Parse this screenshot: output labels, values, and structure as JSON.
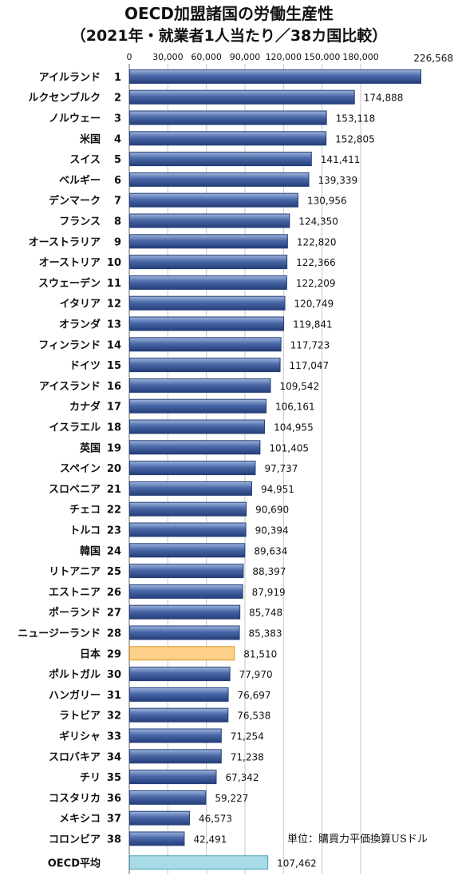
{
  "title_line1": "OECD加盟諸国の労働生産性",
  "title_line2": "（2021年・就業者1人当たり／38カ国比較）",
  "unit_note": "単位：購買力平価換算USドル",
  "colors": {
    "bar": "#4a68a8",
    "bar_light": "#9fb6dc",
    "bar_dark": "#243e78",
    "japan": "#fcd088",
    "japan_border": "#e0962a",
    "oecd_avg": "#a8dbe6",
    "oecd_avg_border": "#4aa0b8",
    "grid": "#c8c8c8"
  },
  "chart_data": {
    "type": "bar",
    "orientation": "horizontal",
    "title": "OECD加盟諸国の労働生産性（2021年・就業者1人当たり／38カ国比較）",
    "xlim": [
      0,
      226568
    ],
    "x_ticks": [
      "0",
      "30,000",
      "60,000",
      "90,000",
      "120,000",
      "150,000",
      "180,000"
    ],
    "x_tick_values": [
      0,
      30000,
      60000,
      90000,
      120000,
      150000,
      180000
    ],
    "grid": true,
    "rows": [
      {
        "country": "アイルランド",
        "rank": "1",
        "value": 226568,
        "value_label": "226,568"
      },
      {
        "country": "ルクセンブルク",
        "rank": "2",
        "value": 174888,
        "value_label": "174,888"
      },
      {
        "country": "ノルウェー",
        "rank": "3",
        "value": 153118,
        "value_label": "153,118"
      },
      {
        "country": "米国",
        "rank": "4",
        "value": 152805,
        "value_label": "152,805"
      },
      {
        "country": "スイス",
        "rank": "5",
        "value": 141411,
        "value_label": "141,411"
      },
      {
        "country": "ベルギー",
        "rank": "6",
        "value": 139339,
        "value_label": "139,339"
      },
      {
        "country": "デンマーク",
        "rank": "7",
        "value": 130956,
        "value_label": "130,956"
      },
      {
        "country": "フランス",
        "rank": "8",
        "value": 124350,
        "value_label": "124,350"
      },
      {
        "country": "オーストラリア",
        "rank": "9",
        "value": 122820,
        "value_label": "122,820"
      },
      {
        "country": "オーストリア",
        "rank": "10",
        "value": 122366,
        "value_label": "122,366"
      },
      {
        "country": "スウェーデン",
        "rank": "11",
        "value": 122209,
        "value_label": "122,209"
      },
      {
        "country": "イタリア",
        "rank": "12",
        "value": 120749,
        "value_label": "120,749"
      },
      {
        "country": "オランダ",
        "rank": "13",
        "value": 119841,
        "value_label": "119,841"
      },
      {
        "country": "フィンランド",
        "rank": "14",
        "value": 117723,
        "value_label": "117,723"
      },
      {
        "country": "ドイツ",
        "rank": "15",
        "value": 117047,
        "value_label": "117,047"
      },
      {
        "country": "アイスランド",
        "rank": "16",
        "value": 109542,
        "value_label": "109,542"
      },
      {
        "country": "カナダ",
        "rank": "17",
        "value": 106161,
        "value_label": "106,161"
      },
      {
        "country": "イスラエル",
        "rank": "18",
        "value": 104955,
        "value_label": "104,955"
      },
      {
        "country": "英国",
        "rank": "19",
        "value": 101405,
        "value_label": "101,405"
      },
      {
        "country": "スペイン",
        "rank": "20",
        "value": 97737,
        "value_label": "97,737"
      },
      {
        "country": "スロベニア",
        "rank": "21",
        "value": 94951,
        "value_label": "94,951"
      },
      {
        "country": "チェコ",
        "rank": "22",
        "value": 90690,
        "value_label": "90,690"
      },
      {
        "country": "トルコ",
        "rank": "23",
        "value": 90394,
        "value_label": "90,394"
      },
      {
        "country": "韓国",
        "rank": "24",
        "value": 89634,
        "value_label": "89,634"
      },
      {
        "country": "リトアニア",
        "rank": "25",
        "value": 88397,
        "value_label": "88,397"
      },
      {
        "country": "エストニア",
        "rank": "26",
        "value": 87919,
        "value_label": "87,919"
      },
      {
        "country": "ポーランド",
        "rank": "27",
        "value": 85748,
        "value_label": "85,748"
      },
      {
        "country": "ニュージーランド",
        "rank": "28",
        "value": 85383,
        "value_label": "85,383"
      },
      {
        "country": "日本",
        "rank": "29",
        "value": 81510,
        "value_label": "81,510",
        "highlight": "japan"
      },
      {
        "country": "ポルトガル",
        "rank": "30",
        "value": 77970,
        "value_label": "77,970"
      },
      {
        "country": "ハンガリー",
        "rank": "31",
        "value": 76697,
        "value_label": "76,697"
      },
      {
        "country": "ラトビア",
        "rank": "32",
        "value": 76538,
        "value_label": "76,538"
      },
      {
        "country": "ギリシャ",
        "rank": "33",
        "value": 71254,
        "value_label": "71,254"
      },
      {
        "country": "スロバキア",
        "rank": "34",
        "value": 71238,
        "value_label": "71,238"
      },
      {
        "country": "チリ",
        "rank": "35",
        "value": 67342,
        "value_label": "67,342"
      },
      {
        "country": "コスタリカ",
        "rank": "36",
        "value": 59227,
        "value_label": "59,227"
      },
      {
        "country": "メキシコ",
        "rank": "37",
        "value": 46573,
        "value_label": "46,573"
      },
      {
        "country": "コロンビア",
        "rank": "38",
        "value": 42491,
        "value_label": "42,491"
      },
      {
        "country": "OECD平均",
        "rank": "",
        "value": 107462,
        "value_label": "107,462",
        "highlight": "oecd"
      }
    ]
  }
}
